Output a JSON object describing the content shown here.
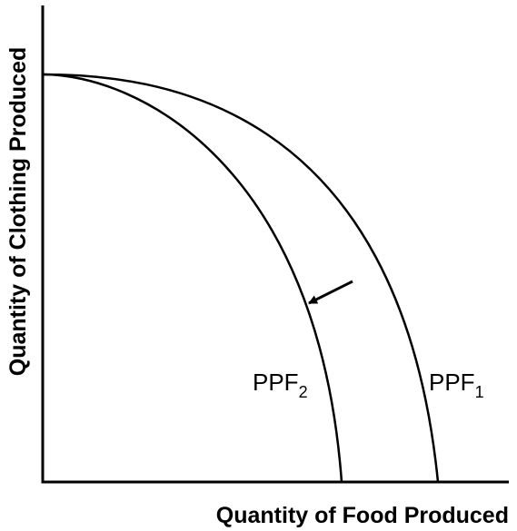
{
  "diagram": {
    "x_axis_label": "Quantity of Food Produced",
    "y_axis_label": "Quantity of Clothing Produced",
    "curves": [
      {
        "name": "PPF",
        "subscript": "1"
      },
      {
        "name": "PPF",
        "subscript": "2"
      }
    ],
    "shift_direction": "inward",
    "colors": {
      "line": "#000000",
      "background": "#ffffff"
    }
  }
}
